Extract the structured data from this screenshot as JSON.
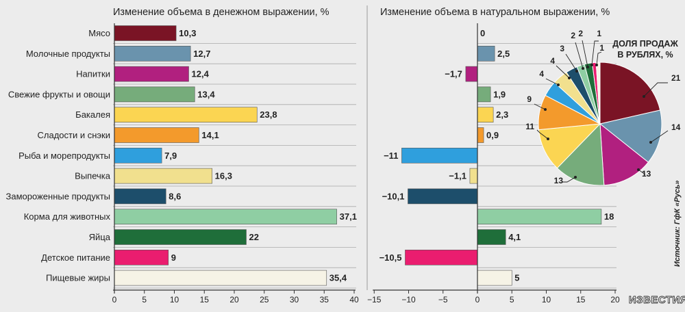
{
  "chart_data": [
    {
      "type": "bar",
      "orientation": "horizontal",
      "title": "Изменение объема в денежном выражении, %",
      "categories": [
        "Мясо",
        "Молочные продукты",
        "Напитки",
        "Свежие фрукты и овощи",
        "Бакалея",
        "Сладости и снэки",
        "Рыба и морепродукты",
        "Выпечка",
        "Замороженные продукты",
        "Корма для животных",
        "Яйца",
        "Детское питание",
        "Пищевые жиры"
      ],
      "values": [
        10.3,
        12.7,
        12.4,
        13.4,
        23.8,
        14.1,
        7.9,
        16.3,
        8.6,
        37.1,
        22,
        9,
        35.4
      ],
      "value_labels": [
        "10,3",
        "12,7",
        "12,4",
        "13,4",
        "23,8",
        "14,1",
        "7,9",
        "16,3",
        "8,6",
        "37,1",
        "22",
        "9",
        "35,4"
      ],
      "xlim": [
        0,
        40
      ],
      "xticks": [
        0,
        5,
        10,
        15,
        20,
        25,
        30,
        35,
        40
      ],
      "grid": true
    },
    {
      "type": "bar",
      "orientation": "horizontal",
      "title": "Изменение объема в натуральном выражении, %",
      "categories": [
        "Мясо",
        "Молочные продукты",
        "Напитки",
        "Свежие фрукты и овощи",
        "Бакалея",
        "Сладости и снэки",
        "Рыба и морепродукты",
        "Выпечка",
        "Замороженные продукты",
        "Корма для животных",
        "Яйца",
        "Детское питание",
        "Пищевые жиры"
      ],
      "values": [
        0,
        2.5,
        -1.7,
        1.9,
        2.3,
        0.9,
        -11,
        -1.1,
        -10.1,
        18,
        4.1,
        -10.5,
        5
      ],
      "value_labels": [
        "0",
        "2,5",
        "−1,7",
        "1,9",
        "2,3",
        "0,9",
        "−11",
        "−1,1",
        "−10,1",
        "18",
        "4,1",
        "−10,5",
        "5"
      ],
      "xlim": [
        -15,
        20
      ],
      "xticks": [
        -15,
        -10,
        -5,
        0,
        5,
        10,
        15,
        20
      ],
      "grid": true
    },
    {
      "type": "pie",
      "title": "ДОЛЯ ПРОДАЖ В РУБЛЯХ, %",
      "title_lines": [
        "ДОЛЯ ПРОДАЖ",
        "В РУБЛЯХ, %"
      ],
      "slices": [
        {
          "value": 21,
          "color": "#7a1425"
        },
        {
          "value": 14,
          "color": "#6a93ad"
        },
        {
          "value": 13,
          "color": "#b1207f"
        },
        {
          "value": 13,
          "color": "#76ac7b"
        },
        {
          "value": 11,
          "color": "#fbd552"
        },
        {
          "value": 9,
          "color": "#f39a2c"
        },
        {
          "value": 4,
          "color": "#2f9fdd"
        },
        {
          "value": 4,
          "color": "#f1e08e"
        },
        {
          "value": 3,
          "color": "#1d4e6b"
        },
        {
          "value": 2,
          "color": "#8fcea3"
        },
        {
          "value": 2,
          "color": "#1f6e3a"
        },
        {
          "value": 1,
          "color": "#ea1d6f"
        },
        {
          "value": 1,
          "color": "#f6f3e6"
        }
      ]
    }
  ],
  "colors": [
    "#7a1425",
    "#6a93ad",
    "#b1207f",
    "#76ac7b",
    "#fbd552",
    "#f39a2c",
    "#2f9fdd",
    "#f1e08e",
    "#1d4e6b",
    "#8fcea3",
    "#1f6e3a",
    "#ea1d6f",
    "#f6f3e6"
  ],
  "source": "Источник: ГфК «Русь»",
  "logo": "ИЗВЕСТИЯ"
}
